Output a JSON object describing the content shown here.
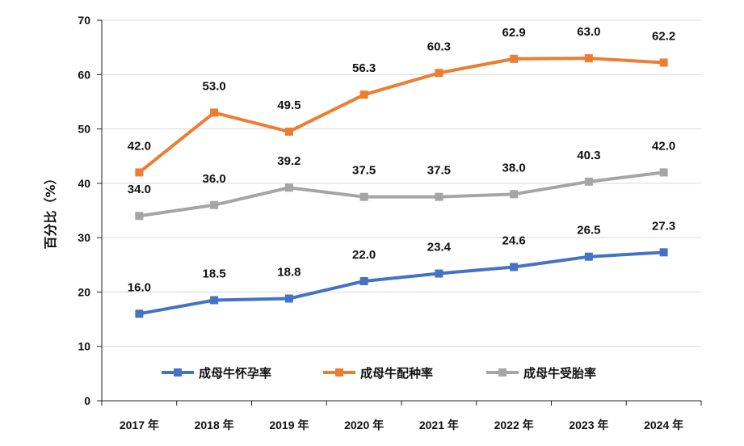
{
  "chart_data": {
    "type": "line",
    "title": "",
    "xlabel": "",
    "ylabel": "百分比（%）",
    "ylim": [
      0,
      70
    ],
    "yticks": [
      "0",
      "10",
      "20",
      "30",
      "40",
      "50",
      "60",
      "70"
    ],
    "categories": [
      "2017 年",
      "2018 年",
      "2019 年",
      "2020 年",
      "2021 年",
      "2022 年",
      "2023 年",
      "2024 年"
    ],
    "grid": true,
    "legend_position": "bottom-inside",
    "series": [
      {
        "name": "成母牛怀孕率",
        "color": "#4472c4",
        "values": [
          16.0,
          18.5,
          18.8,
          22.0,
          23.4,
          24.6,
          26.5,
          27.3
        ],
        "labels": [
          "16.0",
          "18.5",
          "18.8",
          "22.0",
          "23.4",
          "24.6",
          "26.5",
          "27.3"
        ]
      },
      {
        "name": "成母牛配种率",
        "color": "#ed7d31",
        "values": [
          42.0,
          53.0,
          49.5,
          56.3,
          60.3,
          62.9,
          63.0,
          62.2
        ],
        "labels": [
          "42.0",
          "53.0",
          "49.5",
          "56.3",
          "60.3",
          "62.9",
          "63.0",
          "62.2"
        ]
      },
      {
        "name": "成母牛受胎率",
        "color": "#a5a5a5",
        "values": [
          34.0,
          36.0,
          39.2,
          37.5,
          37.5,
          38.0,
          40.3,
          42.0
        ],
        "labels": [
          "34.0",
          "36.0",
          "39.2",
          "37.5",
          "37.5",
          "38.0",
          "40.3",
          "42.0"
        ]
      }
    ]
  }
}
